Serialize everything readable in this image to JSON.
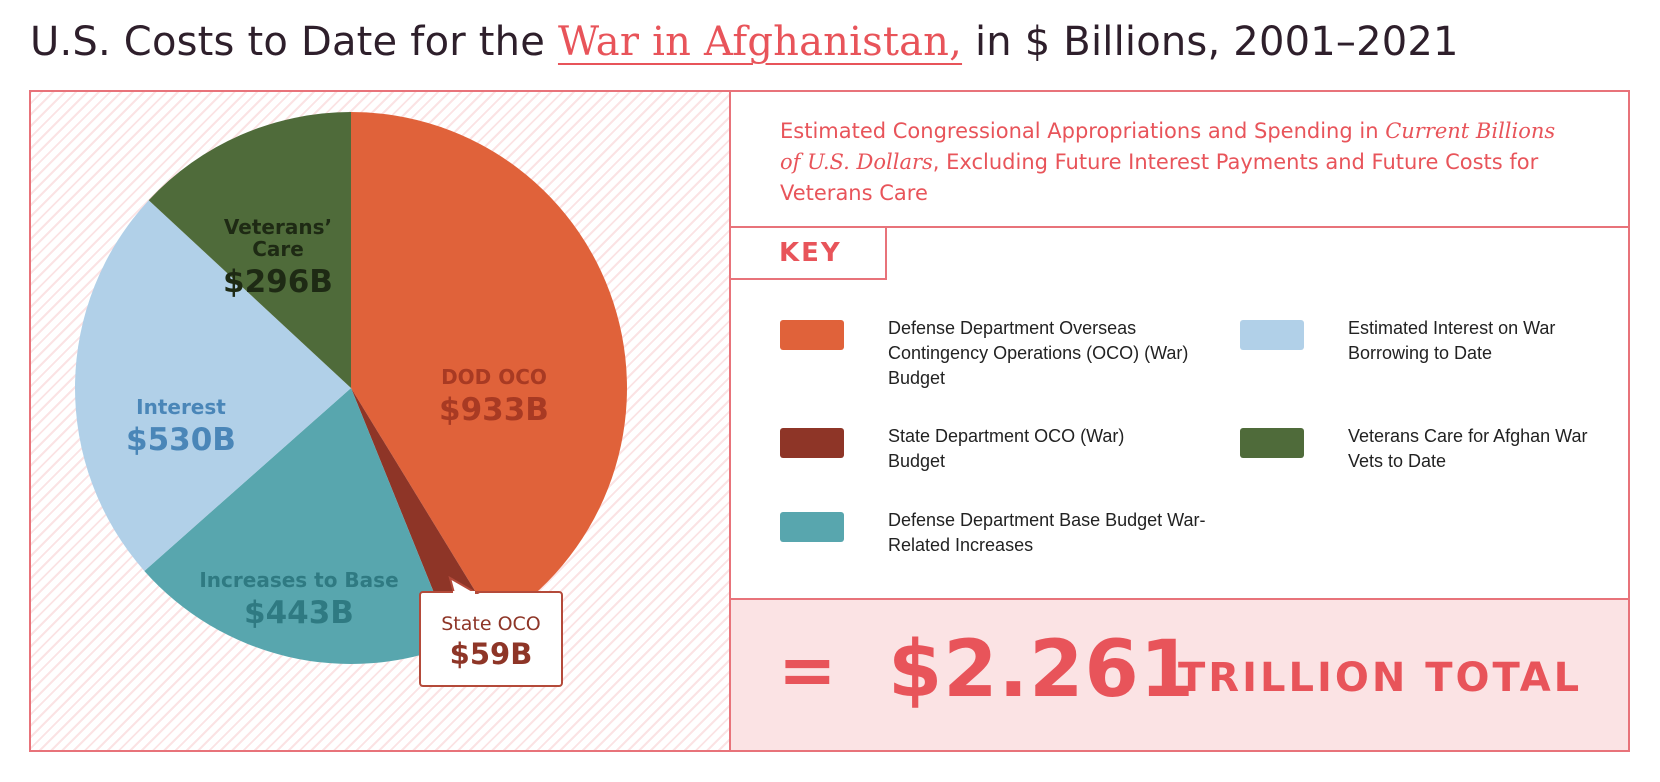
{
  "header": {
    "title_prefix": "U.S. Costs to Date for the ",
    "title_link": "War in Afghanistan,",
    "title_suffix": " in $ Billions, 2001–2021"
  },
  "colors": {
    "accent": "#e8545a",
    "dod_oco": "#e0623a",
    "state_oco": "#8e3527",
    "base_increase": "#58a6ae",
    "interest": "#b1d0e8",
    "veterans": "#4f6b3a"
  },
  "subtitle": {
    "part1": "Estimated Congressional Appropriations and Spending in ",
    "italic": "Current Billions of U.S. Dollars",
    "part2": ", Excluding Future Interest Payments and Future Costs for Veterans Care"
  },
  "key": {
    "heading": "KEY",
    "items": [
      {
        "label": "Defense Department Overseas Contingency Operations (OCO) (War) Budget",
        "color": "#e0623a"
      },
      {
        "label": "State Department OCO (War) Budget",
        "color": "#8e3527"
      },
      {
        "label": "Defense Department Base Budget War-Related Increases",
        "color": "#58a6ae"
      },
      {
        "label": "Estimated Interest on War Borrowing to Date",
        "color": "#b1d0e8"
      },
      {
        "label": "Veterans Care for Afghan War Vets to Date",
        "color": "#4f6b3a"
      }
    ]
  },
  "total": {
    "equals": "=",
    "value": "$2.261",
    "label": "TRILLION TOTAL"
  },
  "chart_data": {
    "type": "pie",
    "title": "U.S. Costs to Date for the War in Afghanistan, in $ Billions, 2001–2021",
    "unit": "$ Billions",
    "start": "12 o'clock, clockwise",
    "slices": [
      {
        "name": "DOD OCO",
        "value": 933,
        "value_label": "$933B",
        "color": "#e0623a",
        "label_color": "#a83a23"
      },
      {
        "name": "State OCO",
        "value": 59,
        "value_label": "$59B",
        "color": "#8e3527",
        "label_color": "#8e3527",
        "callout": true
      },
      {
        "name": "Increases to Base",
        "value": 443,
        "value_label": "$443B",
        "color": "#58a6ae",
        "label_color": "#2f7a82"
      },
      {
        "name": "Interest",
        "value": 530,
        "value_label": "$530B",
        "color": "#b1d0e8",
        "label_color": "#4a86b8"
      },
      {
        "name": "Veterans’ Care",
        "value": 296,
        "value_label": "$296B",
        "color": "#4f6b3a",
        "label_color": "#1e2a14"
      }
    ],
    "total": 2261
  }
}
